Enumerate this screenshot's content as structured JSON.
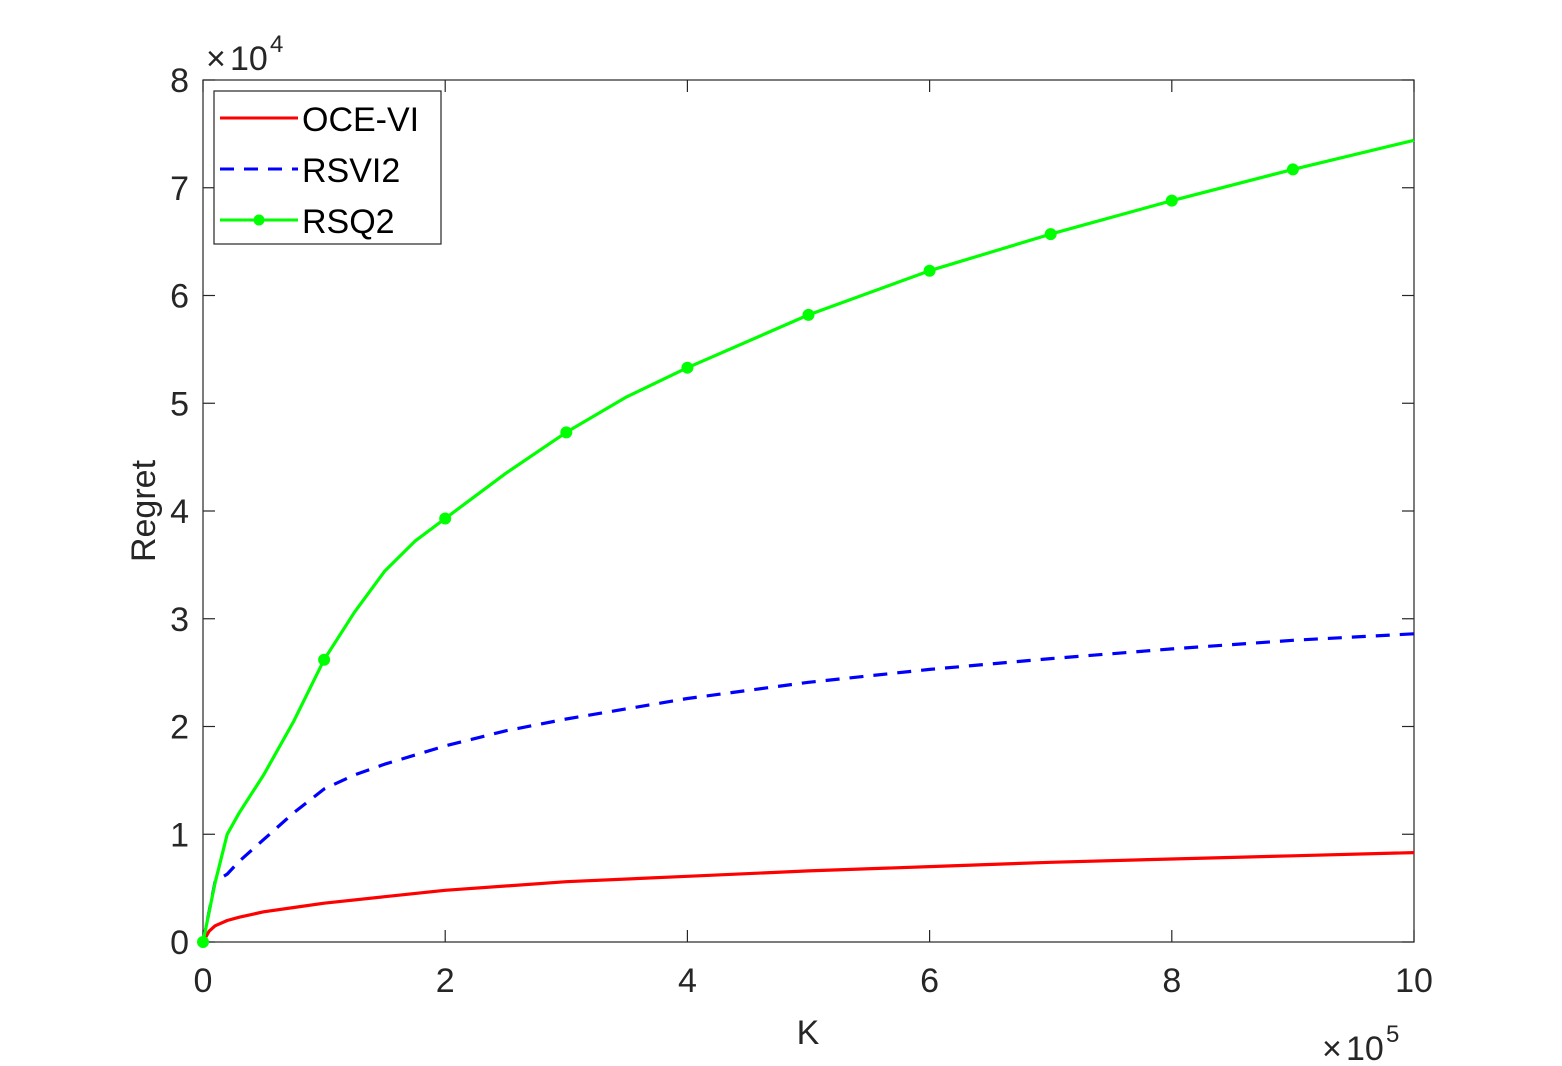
{
  "chart_data": {
    "type": "line",
    "title": "",
    "xlabel": "K",
    "ylabel": "Regret",
    "x_multiplier_label": "10",
    "x_multiplier_exponent": "5",
    "y_multiplier_label": "10",
    "y_multiplier_exponent": "4",
    "xlim": [
      0,
      10
    ],
    "ylim": [
      0,
      8
    ],
    "xticks": [
      "0",
      "2",
      "4",
      "6",
      "8",
      "10"
    ],
    "yticks": [
      "0",
      "1",
      "2",
      "3",
      "4",
      "5",
      "6",
      "7",
      "8"
    ],
    "grid": false,
    "legend_position": "top-left",
    "series": [
      {
        "name": "OCE-VI",
        "color": "#ff0000",
        "style": "solid",
        "marker": "none",
        "x": [
          0,
          0.05,
          0.1,
          0.2,
          0.3,
          0.5,
          0.75,
          1,
          1.5,
          2,
          3,
          4,
          5,
          6,
          7,
          8,
          9,
          10
        ],
        "y": [
          0,
          0.1,
          0.15,
          0.2,
          0.23,
          0.28,
          0.32,
          0.36,
          0.42,
          0.48,
          0.56,
          0.61,
          0.66,
          0.7,
          0.74,
          0.77,
          0.8,
          0.83
        ]
      },
      {
        "name": "RSVI2",
        "color": "#0000ff",
        "style": "dashed",
        "marker": "none",
        "x": [
          0,
          0.1,
          0.2,
          0.3,
          0.5,
          0.75,
          1,
          1.25,
          1.5,
          2,
          2.5,
          3,
          4,
          5,
          6,
          7,
          8,
          9,
          10
        ],
        "y": [
          0,
          0.56,
          0.63,
          0.75,
          0.95,
          1.2,
          1.42,
          1.55,
          1.65,
          1.82,
          1.96,
          2.07,
          2.26,
          2.41,
          2.53,
          2.63,
          2.72,
          2.8,
          2.86
        ]
      },
      {
        "name": "RSQ2",
        "color": "#00ff00",
        "style": "solid",
        "marker": "circle",
        "x": [
          0,
          0.1,
          0.2,
          0.3,
          0.5,
          0.75,
          1,
          1.25,
          1.5,
          1.75,
          2,
          2.5,
          3,
          3.5,
          4,
          5,
          6,
          7,
          8,
          9,
          10
        ],
        "y": [
          0,
          0.55,
          1.0,
          1.2,
          1.55,
          2.05,
          2.62,
          3.06,
          3.44,
          3.72,
          3.93,
          4.35,
          4.73,
          5.06,
          5.33,
          5.82,
          6.23,
          6.57,
          6.88,
          7.17,
          7.44
        ],
        "marker_x": [
          0,
          1,
          2,
          3,
          4,
          5,
          6,
          7,
          8,
          9
        ]
      }
    ]
  }
}
